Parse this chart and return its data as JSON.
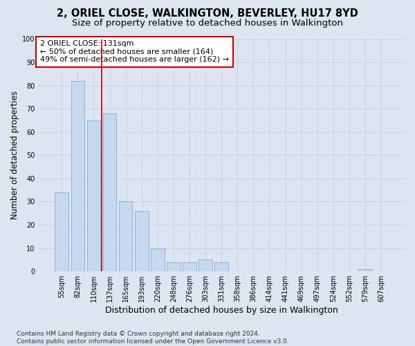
{
  "title": "2, ORIEL CLOSE, WALKINGTON, BEVERLEY, HU17 8YD",
  "subtitle": "Size of property relative to detached houses in Walkington",
  "xlabel": "Distribution of detached houses by size in Walkington",
  "ylabel": "Number of detached properties",
  "bar_labels": [
    "55sqm",
    "82sqm",
    "110sqm",
    "137sqm",
    "165sqm",
    "193sqm",
    "220sqm",
    "248sqm",
    "276sqm",
    "303sqm",
    "331sqm",
    "358sqm",
    "386sqm",
    "414sqm",
    "441sqm",
    "469sqm",
    "497sqm",
    "524sqm",
    "552sqm",
    "579sqm",
    "607sqm"
  ],
  "bar_values": [
    34,
    82,
    65,
    68,
    30,
    26,
    10,
    4,
    4,
    5,
    4,
    0,
    0,
    0,
    0,
    0,
    0,
    0,
    0,
    1,
    0
  ],
  "bar_color": "#c5d8ef",
  "bar_edge_color": "#7aadd4",
  "vline_x": 2.5,
  "vline_color": "#cc0000",
  "annotation_text": "2 ORIEL CLOSE: 131sqm\n← 50% of detached houses are smaller (164)\n49% of semi-detached houses are larger (162) →",
  "annotation_box_color": "#ffffff",
  "annotation_box_edge": "#cc0000",
  "ylim": [
    0,
    100
  ],
  "yticks": [
    0,
    10,
    20,
    30,
    40,
    50,
    60,
    70,
    80,
    90,
    100
  ],
  "grid_color": "#c8d0dc",
  "bg_color": "#dde5f0",
  "footer": "Contains HM Land Registry data © Crown copyright and database right 2024.\nContains public sector information licensed under the Open Government Licence v3.0.",
  "title_fontsize": 10.5,
  "subtitle_fontsize": 9.5,
  "xlabel_fontsize": 9,
  "ylabel_fontsize": 8.5,
  "tick_fontsize": 7,
  "annotation_fontsize": 8,
  "footer_fontsize": 6.5
}
